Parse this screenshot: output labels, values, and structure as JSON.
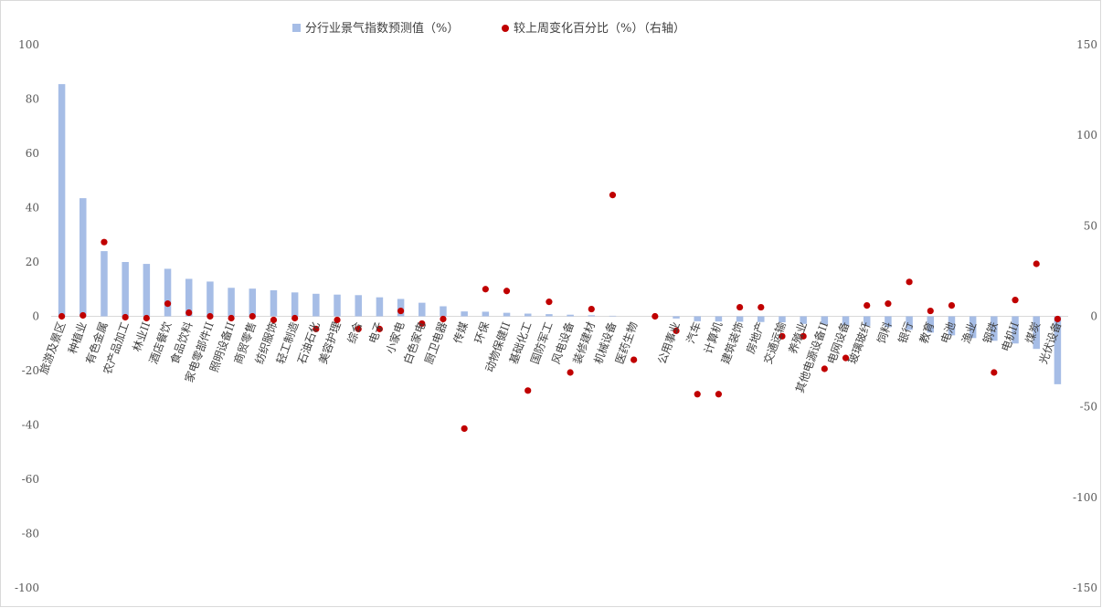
{
  "chart_data": {
    "type": "bar",
    "legend": {
      "placement": "top-center",
      "bar_label": "分行业景气指数预测值（%）",
      "dot_label": "较上周变化百分比（%）（右轴）"
    },
    "y_left": {
      "min": -100,
      "max": 100,
      "step": 20
    },
    "y_right": {
      "min": -150,
      "max": 150,
      "step": 50
    },
    "grid": false,
    "colors": {
      "bar": "#a6bde6",
      "dot": "#c00000",
      "axis": "#d9d9d9",
      "text": "#595959"
    },
    "categories": [
      "旅游及景区",
      "种植业",
      "有色金属",
      "农产品加工",
      "林业II",
      "酒店餐饮",
      "食品饮料",
      "家电零部件II",
      "照明设备II",
      "商贸零售",
      "纺织服饰",
      "轻工制造",
      "石油石化",
      "美容护理",
      "综合",
      "电子",
      "小家电",
      "白色家电",
      "厨卫电器",
      "传媒",
      "环保",
      "动物保健II",
      "基础化工",
      "国防军工",
      "风电设备",
      "装修建材",
      "机械设备",
      "医药生物",
      "",
      "公用事业",
      "汽车",
      "计算机",
      "建筑装饰",
      "房地产",
      "交通运输",
      "养殖业",
      "其他电源设备II",
      "电网设备",
      "玻璃玻纤",
      "饲料",
      "银行",
      "教育",
      "电池",
      "渔业",
      "钢铁",
      "电机II",
      "煤炭",
      "光伏设备"
    ],
    "series": [
      {
        "axis": "left",
        "values": [
          85.5,
          43.5,
          24,
          20,
          19.3,
          17.5,
          13.8,
          12.8,
          10.5,
          10.2,
          9.6,
          8.8,
          8.3,
          8,
          7.8,
          7,
          6.4,
          5,
          3.7,
          1.8,
          1.7,
          1.3,
          1,
          0.8,
          0.6,
          0.4,
          0.2,
          0,
          0,
          -0.8,
          -1.8,
          -1.9,
          -2,
          -2.1,
          -2.2,
          -2.8,
          -3,
          -3.2,
          -3.5,
          -4,
          -5,
          -6,
          -7,
          -8,
          -9,
          -10,
          -12,
          -25
        ]
      },
      {
        "axis": "right",
        "values": [
          0,
          0.5,
          41,
          -0.5,
          -1,
          7,
          2,
          0,
          -1,
          0,
          -2,
          -1,
          -7,
          -2,
          -7,
          -7,
          3,
          -4,
          -1.5,
          -62,
          15,
          14,
          -41,
          8,
          -31,
          4,
          67,
          -24,
          0,
          -8,
          -43,
          -43,
          5,
          5,
          -11,
          -11,
          -29,
          -23,
          6,
          7,
          19,
          3,
          6,
          null,
          -31,
          9,
          29,
          -1.5
        ]
      }
    ]
  }
}
